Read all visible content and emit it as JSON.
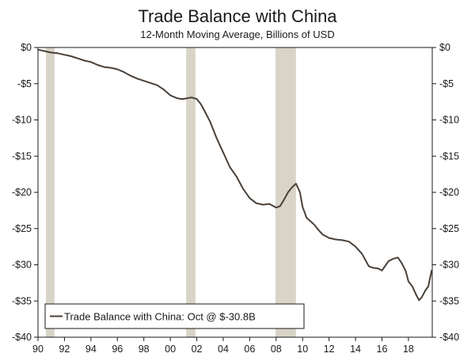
{
  "chart_data": {
    "type": "line",
    "title": "Trade Balance with China",
    "subtitle": "12-Month Moving Average, Billions of USD",
    "xlabel": "",
    "ylabel": "",
    "xlim": [
      1990,
      2019.8
    ],
    "ylim": [
      -40,
      0
    ],
    "grid": false,
    "x_tick_values": [
      1990,
      1992,
      1994,
      1996,
      1998,
      2000,
      2002,
      2004,
      2006,
      2008,
      2010,
      2012,
      2014,
      2016,
      2018
    ],
    "x_tick_labels": [
      "90",
      "92",
      "94",
      "96",
      "98",
      "00",
      "02",
      "04",
      "06",
      "08",
      "10",
      "12",
      "14",
      "16",
      "18"
    ],
    "y_tick_values": [
      0,
      -5,
      -10,
      -15,
      -20,
      -25,
      -30,
      -35,
      -40
    ],
    "y_tick_labels": [
      "$0",
      "-$5",
      "-$10",
      "-$15",
      "-$20",
      "-$25",
      "-$30",
      "-$35",
      "-$40"
    ],
    "recession_bands": [
      [
        1990.6,
        1991.25
      ],
      [
        2001.2,
        2001.9
      ],
      [
        2007.95,
        2009.5
      ]
    ],
    "legend": {
      "position": "bottom-left",
      "entries": [
        "Trade Balance with China: Oct @ $-30.8B"
      ]
    },
    "colors": {
      "line": "#4a4038",
      "recession": "#d8d4c8",
      "axis": "#1a1a1a"
    },
    "series": [
      {
        "name": "Trade Balance with China: Oct @ $-30.8B",
        "x": [
          1990.0,
          1990.5,
          1991.0,
          1991.5,
          1992.0,
          1992.5,
          1993.0,
          1993.5,
          1994.0,
          1994.5,
          1995.0,
          1995.5,
          1996.0,
          1996.5,
          1997.0,
          1997.5,
          1998.0,
          1998.5,
          1999.0,
          1999.5,
          2000.0,
          2000.5,
          2000.8,
          2001.0,
          2001.3,
          2001.6,
          2002.0,
          2002.3,
          2002.6,
          2003.0,
          2003.5,
          2004.0,
          2004.5,
          2005.0,
          2005.5,
          2006.0,
          2006.5,
          2007.0,
          2007.5,
          2008.0,
          2008.3,
          2008.6,
          2008.9,
          2009.2,
          2009.5,
          2009.8,
          2010.0,
          2010.3,
          2010.6,
          2010.9,
          2011.2,
          2011.5,
          2012.0,
          2012.5,
          2013.0,
          2013.5,
          2014.0,
          2014.5,
          2015.0,
          2015.3,
          2015.7,
          2016.0,
          2016.3,
          2016.5,
          2016.8,
          2017.2,
          2017.5,
          2017.8,
          2018.0,
          2018.3,
          2018.6,
          2018.8,
          2019.0,
          2019.3,
          2019.5,
          2019.75
        ],
        "values": [
          -0.3,
          -0.5,
          -0.7,
          -0.8,
          -1.0,
          -1.2,
          -1.5,
          -1.8,
          -2.0,
          -2.4,
          -2.7,
          -2.8,
          -3.0,
          -3.4,
          -3.9,
          -4.3,
          -4.6,
          -4.9,
          -5.2,
          -5.8,
          -6.6,
          -7.0,
          -7.1,
          -7.1,
          -7.0,
          -6.9,
          -7.1,
          -7.8,
          -8.8,
          -10.2,
          -12.5,
          -14.5,
          -16.5,
          -17.8,
          -19.5,
          -20.8,
          -21.5,
          -21.7,
          -21.6,
          -22.1,
          -21.9,
          -21.0,
          -20.0,
          -19.3,
          -18.8,
          -20.0,
          -22.0,
          -23.5,
          -24.0,
          -24.5,
          -25.2,
          -25.8,
          -26.3,
          -26.5,
          -26.6,
          -26.8,
          -27.5,
          -28.5,
          -30.2,
          -30.4,
          -30.5,
          -30.8,
          -30.0,
          -29.5,
          -29.2,
          -29.0,
          -29.8,
          -30.9,
          -32.3,
          -33.0,
          -34.2,
          -34.9,
          -34.5,
          -33.5,
          -33.0,
          -30.8
        ]
      }
    ]
  }
}
